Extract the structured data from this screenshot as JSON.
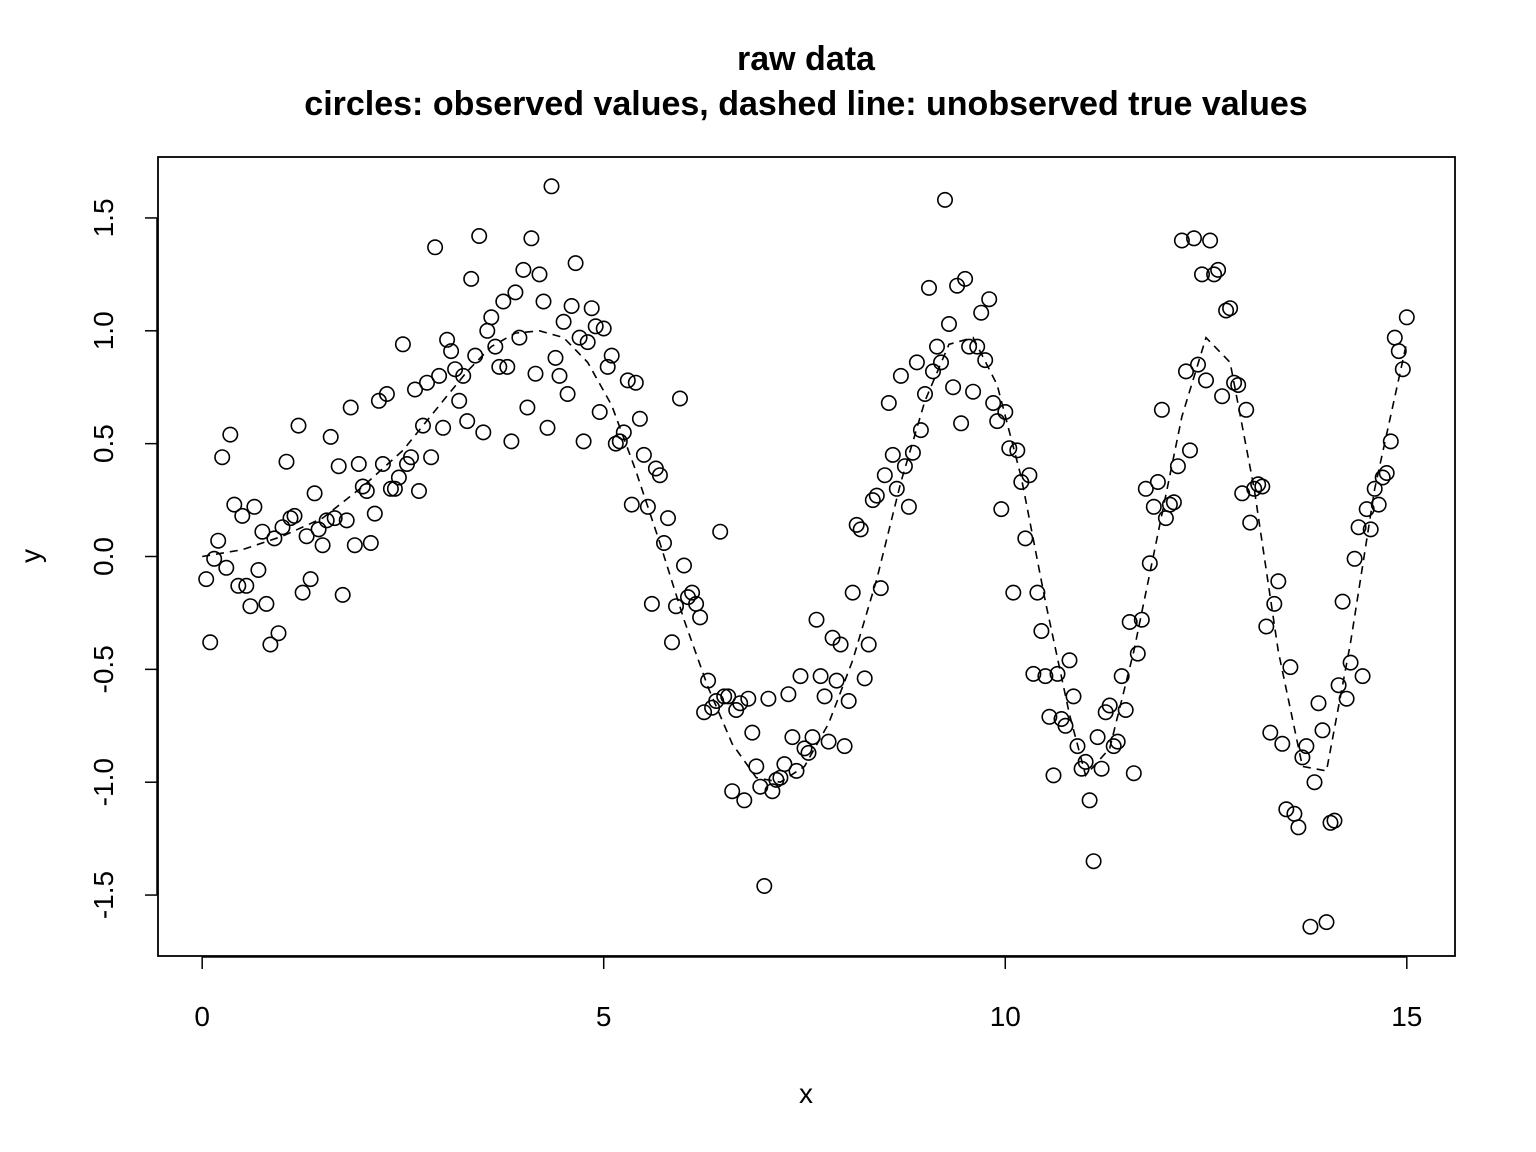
{
  "chart_data": {
    "type": "scatter",
    "title": "raw data",
    "subtitle": "circles: observed values, dashed line: unobserved true values",
    "xlabel": "x",
    "ylabel": "y",
    "xlim": [
      -0.55,
      15.6
    ],
    "ylim": [
      -1.77,
      1.77
    ],
    "x_ticks": [
      0,
      5,
      10,
      15
    ],
    "x_tick_labels": [
      "0",
      "5",
      "10",
      "15"
    ],
    "y_ticks": [
      -1.5,
      -1.0,
      -0.5,
      0.0,
      0.5,
      1.0,
      1.5
    ],
    "y_tick_labels": [
      "-1.5",
      "-1.0",
      "-0.5",
      "0.0",
      "0.5",
      "1.0",
      "1.5"
    ],
    "grid": false,
    "legend": "none",
    "colors": {
      "points": "#000000",
      "line": "#000000",
      "background": "#ffffff"
    },
    "series": [
      {
        "kind": "points",
        "x": [
          0.05,
          0.1,
          0.15,
          0.2,
          0.25,
          0.3,
          0.35,
          0.4,
          0.45,
          0.5,
          0.55,
          0.6,
          0.65,
          0.7,
          0.75,
          0.8,
          0.85,
          0.9,
          0.95,
          1.0,
          1.05,
          1.1,
          1.15,
          1.2,
          1.25,
          1.3,
          1.35,
          1.4,
          1.45,
          1.5,
          1.55,
          1.6,
          1.65,
          1.7,
          1.75,
          1.8,
          1.85,
          1.9,
          1.95,
          2.0,
          2.05,
          2.1,
          2.15,
          2.2,
          2.25,
          2.3,
          2.35,
          2.4,
          2.45,
          2.5,
          2.55,
          2.6,
          2.65,
          2.7,
          2.75,
          2.8,
          2.85,
          2.9,
          2.95,
          3.0,
          3.05,
          3.1,
          3.15,
          3.2,
          3.25,
          3.3,
          3.35,
          3.4,
          3.45,
          3.5,
          3.55,
          3.6,
          3.65,
          3.7,
          3.75,
          3.8,
          3.85,
          3.9,
          3.95,
          4.0,
          4.05,
          4.1,
          4.15,
          4.2,
          4.25,
          4.3,
          4.35,
          4.4,
          4.45,
          4.5,
          4.55,
          4.6,
          4.65,
          4.7,
          4.75,
          4.8,
          4.85,
          4.9,
          4.95,
          5.0,
          5.05,
          5.1,
          5.15,
          5.2,
          5.25,
          5.3,
          5.35,
          5.4,
          5.45,
          5.5,
          5.55,
          5.6,
          5.65,
          5.7,
          5.75,
          5.8,
          5.85,
          5.9,
          5.95,
          6.0,
          6.05,
          6.1,
          6.15,
          6.2,
          6.25,
          6.3,
          6.35,
          6.4,
          6.45,
          6.5,
          6.55,
          6.6,
          6.65,
          6.7,
          6.75,
          6.8,
          6.85,
          6.9,
          6.95,
          7.0,
          7.05,
          7.1,
          7.15,
          7.2,
          7.25,
          7.3,
          7.35,
          7.4,
          7.45,
          7.5,
          7.55,
          7.6,
          7.65,
          7.7,
          7.75,
          7.8,
          7.85,
          7.9,
          7.95,
          8.0,
          8.05,
          8.1,
          8.15,
          8.2,
          8.25,
          8.3,
          8.35,
          8.4,
          8.45,
          8.5,
          8.55,
          8.6,
          8.65,
          8.7,
          8.75,
          8.8,
          8.85,
          8.9,
          8.95,
          9.0,
          9.05,
          9.1,
          9.15,
          9.2,
          9.25,
          9.3,
          9.35,
          9.4,
          9.45,
          9.5,
          9.55,
          9.6,
          9.65,
          9.7,
          9.75,
          9.8,
          9.85,
          9.9,
          9.95,
          10.0,
          10.05,
          10.1,
          10.15,
          10.2,
          10.25,
          10.3,
          10.35,
          10.4,
          10.45,
          10.5,
          10.55,
          10.6,
          10.65,
          10.7,
          10.75,
          10.8,
          10.85,
          10.9,
          10.95,
          11.0,
          11.05,
          11.1,
          11.15,
          11.2,
          11.25,
          11.3,
          11.35,
          11.4,
          11.45,
          11.5,
          11.55,
          11.6,
          11.65,
          11.7,
          11.75,
          11.8,
          11.85,
          11.9,
          11.95,
          12.0,
          12.05,
          12.1,
          12.15,
          12.2,
          12.25,
          12.3,
          12.35,
          12.4,
          12.45,
          12.5,
          12.55,
          12.6,
          12.65,
          12.7,
          12.75,
          12.8,
          12.85,
          12.9,
          12.95,
          13.0,
          13.05,
          13.1,
          13.15,
          13.2,
          13.25,
          13.3,
          13.35,
          13.4,
          13.45,
          13.5,
          13.55,
          13.6,
          13.65,
          13.7,
          13.75,
          13.8,
          13.85,
          13.9,
          13.95,
          14.0,
          14.05,
          14.1,
          14.15,
          14.2,
          14.25,
          14.3,
          14.35,
          14.4,
          14.45,
          14.5,
          14.55,
          14.6,
          14.65,
          14.7,
          14.75,
          14.8,
          14.85,
          14.9,
          14.95,
          15.0
        ],
        "y": [
          -0.1,
          -0.38,
          -0.01,
          0.07,
          0.44,
          -0.05,
          0.54,
          0.23,
          -0.13,
          0.18,
          -0.13,
          -0.22,
          0.22,
          -0.06,
          0.11,
          -0.21,
          -0.39,
          0.08,
          -0.34,
          0.13,
          0.42,
          0.17,
          0.18,
          0.58,
          -0.16,
          0.09,
          -0.1,
          0.28,
          0.12,
          0.05,
          0.16,
          0.53,
          0.17,
          0.4,
          -0.17,
          0.16,
          0.66,
          0.05,
          0.41,
          0.31,
          0.29,
          0.06,
          0.19,
          0.69,
          0.41,
          0.72,
          0.3,
          0.3,
          0.35,
          0.94,
          0.41,
          0.44,
          0.74,
          0.29,
          0.58,
          0.77,
          0.44,
          1.37,
          0.8,
          0.57,
          0.96,
          0.91,
          0.83,
          0.69,
          0.8,
          0.6,
          1.23,
          0.89,
          1.42,
          0.55,
          1.0,
          1.06,
          0.93,
          0.84,
          1.13,
          0.84,
          0.51,
          1.17,
          0.97,
          1.27,
          0.66,
          1.41,
          0.81,
          1.25,
          1.13,
          0.57,
          1.64,
          0.88,
          0.8,
          1.04,
          0.72,
          1.11,
          1.3,
          0.97,
          0.51,
          0.95,
          1.1,
          1.02,
          0.64,
          1.01,
          0.84,
          0.89,
          0.5,
          0.51,
          0.55,
          0.78,
          0.23,
          0.77,
          0.61,
          0.45,
          0.22,
          -0.21,
          0.39,
          0.36,
          0.06,
          0.17,
          -0.38,
          -0.22,
          0.7,
          -0.04,
          -0.18,
          -0.16,
          -0.21,
          -0.27,
          -0.69,
          -0.55,
          -0.67,
          -0.64,
          0.11,
          -0.62,
          -0.62,
          -1.04,
          -0.68,
          -0.65,
          -1.08,
          -0.63,
          -0.78,
          -0.93,
          -1.02,
          -1.46,
          -0.63,
          -1.04,
          -0.99,
          -0.98,
          -0.92,
          -0.61,
          -0.8,
          -0.95,
          -0.53,
          -0.85,
          -0.87,
          -0.8,
          -0.28,
          -0.53,
          -0.62,
          -0.82,
          -0.36,
          -0.55,
          -0.39,
          -0.84,
          -0.64,
          -0.16,
          0.14,
          0.12,
          -0.54,
          -0.39,
          0.25,
          0.27,
          -0.14,
          0.36,
          0.68,
          0.45,
          0.3,
          0.8,
          0.4,
          0.22,
          0.46,
          0.86,
          0.56,
          0.72,
          1.19,
          0.82,
          0.93,
          0.86,
          1.58,
          1.03,
          0.75,
          1.2,
          0.59,
          1.23,
          0.93,
          0.73,
          0.93,
          1.08,
          0.87,
          1.14,
          0.68,
          0.6,
          0.21,
          0.64,
          0.48,
          -0.16,
          0.47,
          0.33,
          0.08,
          0.36,
          -0.52,
          -0.16,
          -0.33,
          -0.53,
          -0.71,
          -0.97,
          -0.52,
          -0.72,
          -0.75,
          -0.46,
          -0.62,
          -0.84,
          -0.94,
          -0.91,
          -1.08,
          -1.35,
          -0.8,
          -0.94,
          -0.69,
          -0.66,
          -0.84,
          -0.82,
          -0.53,
          -0.68,
          -0.29,
          -0.96,
          -0.43,
          -0.28,
          0.3,
          -0.03,
          0.22,
          0.33,
          0.65,
          0.17,
          0.23,
          0.24,
          0.4,
          1.4,
          0.82,
          0.47,
          1.41,
          0.85,
          1.25,
          0.78,
          1.4,
          1.25,
          1.27,
          0.71,
          1.09,
          1.1,
          0.77,
          0.76,
          0.28,
          0.65,
          0.15,
          0.3,
          0.32,
          0.31,
          -0.31,
          -0.78,
          -0.21,
          -0.11,
          -0.83,
          -1.12,
          -0.49,
          -1.14,
          -1.2,
          -0.89,
          -0.84,
          -1.64,
          -1.0,
          -0.65,
          -0.77,
          -1.62,
          -1.18,
          -1.17,
          -0.57,
          -0.2,
          -0.63,
          -0.47,
          -0.01,
          0.13,
          -0.53,
          0.21,
          0.12,
          0.3,
          0.23,
          0.35,
          0.37,
          0.51,
          0.97,
          0.91,
          0.83,
          1.06
        ]
      },
      {
        "kind": "line",
        "x": [
          0,
          0.5,
          1,
          1.5,
          2,
          2.5,
          3,
          3.3,
          3.6,
          3.9,
          4.2,
          4.5,
          4.8,
          5.1,
          5.4,
          5.7,
          6,
          6.3,
          6.6,
          6.9,
          7.2,
          7.5,
          7.8,
          8.1,
          8.4,
          8.7,
          9,
          9.3,
          9.6,
          9.9,
          10.2,
          10.5,
          10.8,
          11,
          11.3,
          11.6,
          11.9,
          12.2,
          12.5,
          12.8,
          13.1,
          13.4,
          13.7,
          14,
          14.3,
          14.6,
          15
        ],
        "y": [
          0,
          0.03,
          0.09,
          0.17,
          0.31,
          0.47,
          0.69,
          0.82,
          0.93,
          0.99,
          1.0,
          0.97,
          0.86,
          0.67,
          0.38,
          0.06,
          -0.28,
          -0.58,
          -0.83,
          -0.98,
          -1.0,
          -0.93,
          -0.74,
          -0.46,
          -0.1,
          0.33,
          0.69,
          0.94,
          0.97,
          0.76,
          0.35,
          -0.2,
          -0.7,
          -0.97,
          -0.85,
          -0.42,
          0.1,
          0.62,
          0.97,
          0.86,
          0.3,
          -0.42,
          -0.93,
          -0.95,
          -0.38,
          0.3,
          0.95
        ]
      }
    ]
  }
}
